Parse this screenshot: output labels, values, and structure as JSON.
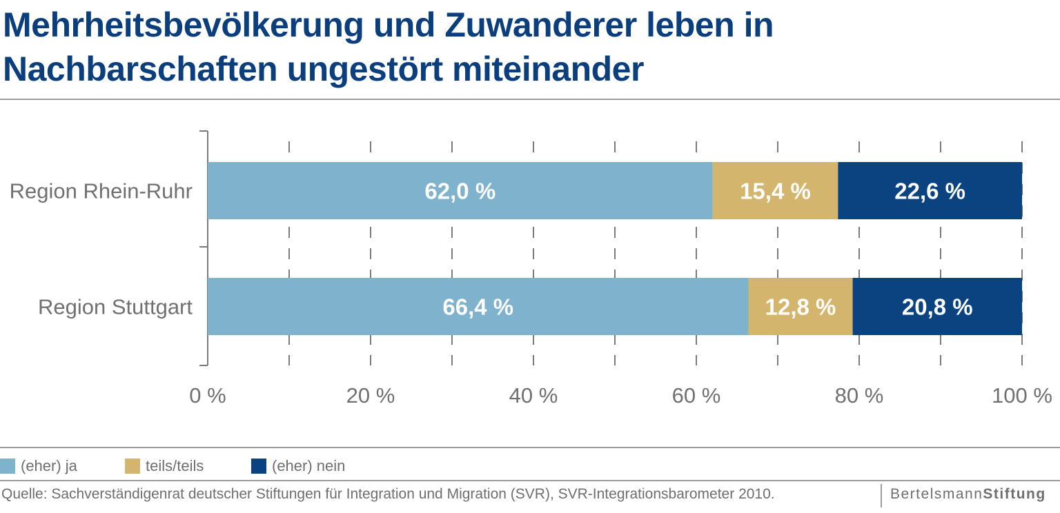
{
  "title_line1": "Mehrheitsbevölkerung und Zuwanderer leben in",
  "title_line2": "Nachbarschaften ungestört miteinander",
  "chart_data": {
    "type": "bar",
    "orientation": "horizontal",
    "stacked": true,
    "categories": [
      "Region Rhein-Ruhr",
      "Region Stuttgart"
    ],
    "series": [
      {
        "name": "(eher) ja",
        "values": [
          62.0,
          66.4
        ],
        "labels": [
          "62,0 %",
          "66,4 %"
        ],
        "color": "#7fb2cc",
        "label_color": "#ffffff"
      },
      {
        "name": "teils/teils",
        "values": [
          15.4,
          12.8
        ],
        "labels": [
          "15,4 %",
          "12,8 %"
        ],
        "color": "#d4b56e",
        "label_color": "#ffffff"
      },
      {
        "name": "(eher) nein",
        "values": [
          22.6,
          20.8
        ],
        "labels": [
          "22,6 %",
          "20,8 %"
        ],
        "color": "#0a4380",
        "label_color": "#ffffff"
      }
    ],
    "xlim": [
      0,
      100
    ],
    "x_ticks": [
      0,
      20,
      40,
      60,
      80,
      100
    ],
    "x_tick_labels": [
      "0 %",
      "20 %",
      "40 %",
      "60 %",
      "80 %",
      "100 %"
    ],
    "x_minor_ticks": [
      10,
      30,
      50,
      70,
      90
    ],
    "grid": "dashed vertical tick marks",
    "legend_position": "bottom-left"
  },
  "legend": [
    {
      "label": "(eher) ja",
      "color": "#7fb2cc"
    },
    {
      "label": "teils/teils",
      "color": "#d4b56e"
    },
    {
      "label": "(eher) nein",
      "color": "#0a4380"
    }
  ],
  "source": "Quelle: Sachverständigenrat deutscher Stiftungen für Integration und Migration (SVR), SVR-Integrationsbarometer 2010.",
  "brand_regular": "Bertelsmann",
  "brand_bold": "Stiftung"
}
